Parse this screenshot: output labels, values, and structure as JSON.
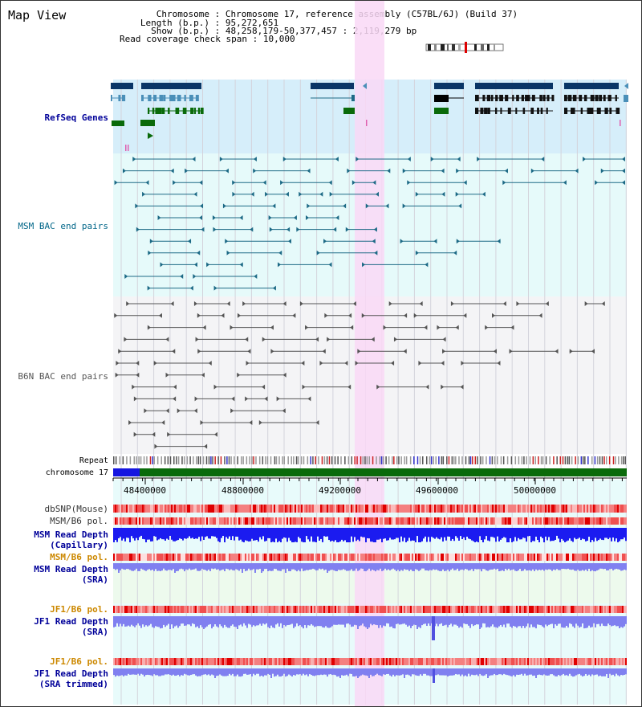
{
  "title": "Map View",
  "header": {
    "chromosome_key": "Chromosome",
    "chromosome_val": "Chromosome 17, reference assembly (C57BL/6J) (Build 37)",
    "length_key": "Length (b.p.)",
    "length_val": "95,272,651",
    "show_key": "Show (b.p.)",
    "show_val": "48,258,179-50,377,457 : 2,119,279 bp",
    "coverage_key": "Read coverage check span",
    "coverage_val": "10,000"
  },
  "tracks": {
    "refseq": "RefSeq Genes",
    "msm_bac": "MSM BAC end pairs",
    "b6n_bac": "B6N BAC end pairs",
    "repeat": "Repeat",
    "chromosome": "chromosome 17",
    "dbsnp": "dbSNP(Mouse)",
    "msm_b6_pol_1": "MSM/B6 pol.",
    "msm_read_depth_cap_1": "MSM Read Depth",
    "msm_read_depth_cap_2": "(Capillary)",
    "msm_b6_pol_2": "MSM/B6 pol.",
    "msm_read_depth_sra_1": "MSM Read Depth",
    "msm_read_depth_sra_2": "(SRA)",
    "jf1_b6_pol_1": "JF1/B6 pol.",
    "jf1_read_depth_sra_1": "JF1 Read Depth",
    "jf1_read_depth_sra_2": "(SRA)",
    "jf1_b6_pol_2": "JF1/B6 pol.",
    "jf1_read_depth_trim_1": "JF1 Read Depth",
    "jf1_read_depth_trim_2": "(SRA trimmed)"
  },
  "axis_ticks": [
    "48400000",
    "48800000",
    "49200000",
    "49600000",
    "50000000"
  ],
  "colors": {
    "refseq_bg": "#d6eefa",
    "msm_bg": "#e6fafa",
    "b6n_bg": "#f4f4f6",
    "highlight": "#f9d8f6",
    "gene_dark": "#0a3566",
    "gene_mid": "#4a8fb8",
    "gene_green": "#0a6a0a",
    "msm_pair": "#1d6a86",
    "b6n_pair": "#555555",
    "depth_blue": "#1b1bf0",
    "depth_light": "#8080f0",
    "refseq_label": "#000099",
    "msm_label": "#006688",
    "pol_label": "#cc8800",
    "depth_label": "#000099"
  }
}
